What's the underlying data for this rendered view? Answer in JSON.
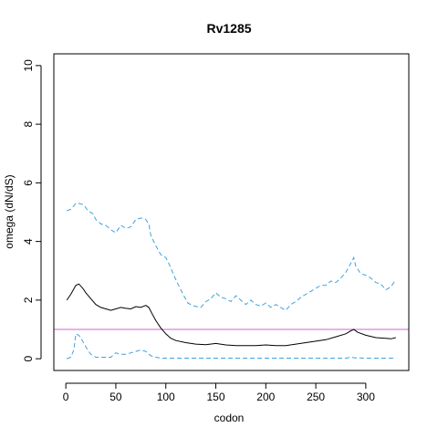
{
  "chart_data": {
    "type": "line",
    "title": "Rv1285",
    "xlabel": "codon",
    "ylabel": "omega (dN/dS)",
    "xlim": [
      -12,
      343
    ],
    "ylim": [
      -0.4,
      10.4
    ],
    "xticks": [
      0,
      50,
      100,
      150,
      200,
      250,
      300
    ],
    "yticks": [
      0,
      2,
      4,
      6,
      8,
      10
    ],
    "grid": false,
    "legend": "none",
    "reference_line": {
      "y": 1,
      "color": "#cc66cc"
    },
    "series": [
      {
        "role": "estimate",
        "color": "#000000",
        "dash": "solid",
        "x": [
          1,
          5,
          10,
          13,
          17,
          20,
          25,
          30,
          35,
          40,
          45,
          50,
          55,
          60,
          65,
          70,
          75,
          80,
          83,
          86,
          90,
          95,
          100,
          105,
          110,
          120,
          130,
          140,
          150,
          160,
          170,
          180,
          190,
          200,
          210,
          220,
          230,
          240,
          250,
          260,
          270,
          280,
          285,
          288,
          292,
          300,
          310,
          320,
          325,
          330
        ],
        "y": [
          2.0,
          2.2,
          2.5,
          2.55,
          2.4,
          2.25,
          2.05,
          1.85,
          1.75,
          1.7,
          1.65,
          1.7,
          1.75,
          1.72,
          1.7,
          1.78,
          1.75,
          1.82,
          1.75,
          1.55,
          1.3,
          1.05,
          0.85,
          0.7,
          0.62,
          0.55,
          0.5,
          0.48,
          0.52,
          0.47,
          0.45,
          0.45,
          0.45,
          0.47,
          0.45,
          0.45,
          0.5,
          0.55,
          0.6,
          0.65,
          0.75,
          0.85,
          0.95,
          1.0,
          0.9,
          0.8,
          0.72,
          0.7,
          0.68,
          0.72
        ]
      },
      {
        "role": "upper",
        "color": "#3ba3e0",
        "dash": "dashed",
        "x": [
          1,
          5,
          10,
          13,
          18,
          22,
          27,
          30,
          35,
          40,
          45,
          50,
          55,
          60,
          65,
          70,
          75,
          80,
          83,
          85,
          90,
          95,
          100,
          103,
          108,
          112,
          118,
          122,
          128,
          135,
          140,
          145,
          150,
          155,
          160,
          165,
          170,
          175,
          180,
          185,
          190,
          195,
          200,
          205,
          210,
          215,
          220,
          225,
          230,
          235,
          240,
          245,
          250,
          255,
          260,
          265,
          270,
          275,
          280,
          285,
          288,
          290,
          295,
          300,
          305,
          310,
          315,
          320,
          325,
          330
        ],
        "y": [
          5.05,
          5.1,
          5.3,
          5.3,
          5.25,
          5.05,
          4.95,
          4.75,
          4.6,
          4.55,
          4.4,
          4.3,
          4.55,
          4.45,
          4.5,
          4.75,
          4.8,
          4.75,
          4.6,
          4.2,
          3.85,
          3.55,
          3.45,
          3.25,
          2.85,
          2.55,
          2.15,
          1.9,
          1.8,
          1.75,
          1.95,
          2.05,
          2.25,
          2.1,
          2.05,
          1.95,
          2.15,
          2.0,
          1.85,
          2.0,
          1.85,
          1.8,
          1.9,
          1.75,
          1.85,
          1.75,
          1.65,
          1.85,
          1.95,
          2.1,
          2.2,
          2.3,
          2.4,
          2.5,
          2.5,
          2.65,
          2.6,
          2.75,
          2.95,
          3.25,
          3.45,
          3.15,
          2.9,
          2.85,
          2.75,
          2.6,
          2.55,
          2.35,
          2.45,
          2.7
        ]
      },
      {
        "role": "lower",
        "color": "#3ba3e0",
        "dash": "dashed",
        "x": [
          1,
          5,
          8,
          10,
          13,
          16,
          20,
          25,
          30,
          35,
          40,
          45,
          50,
          55,
          60,
          65,
          70,
          75,
          80,
          85,
          90,
          95,
          100,
          120,
          140,
          160,
          180,
          200,
          220,
          240,
          260,
          280,
          285,
          290,
          300,
          310,
          320,
          330
        ],
        "y": [
          0.0,
          0.05,
          0.3,
          0.85,
          0.8,
          0.65,
          0.4,
          0.15,
          0.05,
          0.05,
          0.05,
          0.05,
          0.2,
          0.15,
          0.15,
          0.2,
          0.25,
          0.3,
          0.25,
          0.1,
          0.05,
          0.02,
          0.02,
          0.02,
          0.02,
          0.02,
          0.02,
          0.02,
          0.02,
          0.02,
          0.02,
          0.02,
          0.05,
          0.03,
          0.02,
          0.02,
          0.02,
          0.02
        ]
      }
    ]
  }
}
